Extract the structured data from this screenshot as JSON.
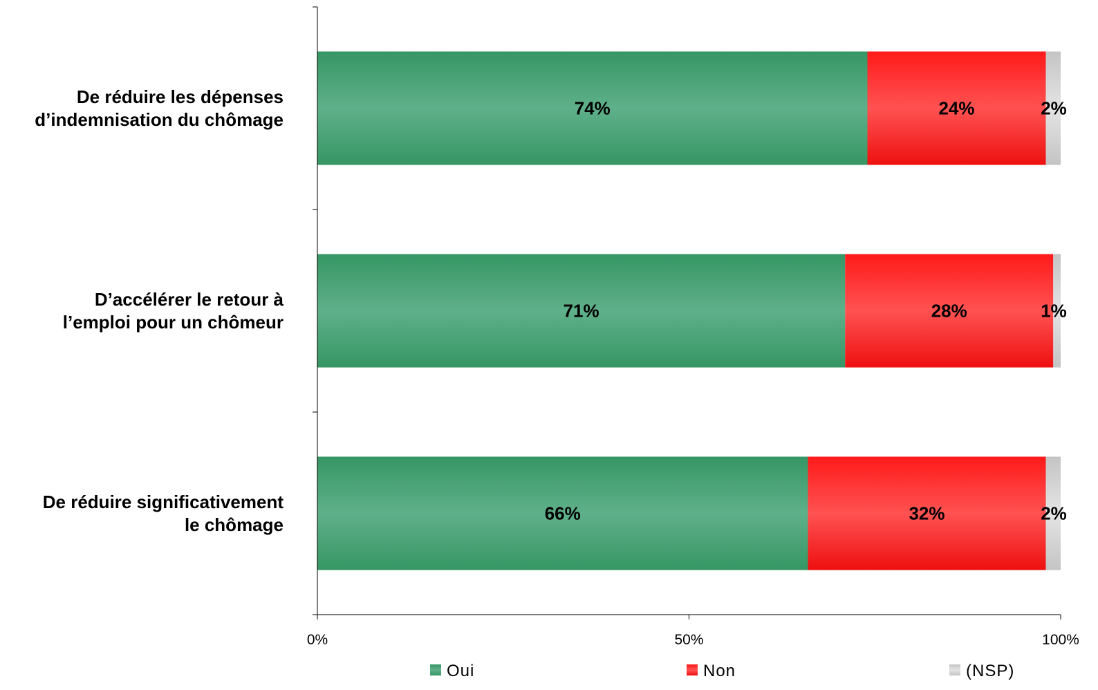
{
  "chart_data": {
    "type": "bar",
    "orientation": "horizontal",
    "stacked": true,
    "categories": [
      [
        "De réduire les dépenses",
        "d’indemnisation du chômage"
      ],
      [
        "D’accélérer le retour à",
        "l’emploi pour un chômeur"
      ],
      [
        "De réduire significativement",
        "le chômage"
      ]
    ],
    "series": [
      {
        "name": "Oui",
        "values": [
          74,
          71,
          66
        ],
        "labels": [
          "74%",
          "71%",
          "66%"
        ],
        "color": "#3a9a68"
      },
      {
        "name": "Non",
        "values": [
          24,
          28,
          32
        ],
        "labels": [
          "24%",
          "28%",
          "32%"
        ],
        "color": "#ff2222"
      },
      {
        "name": "(NSP)",
        "values": [
          2,
          1,
          2
        ],
        "labels": [
          "2%",
          "1%",
          "2%"
        ],
        "color": "#cfcfcf"
      }
    ],
    "xlim": [
      0,
      100
    ],
    "x_ticks": [
      0,
      50,
      100
    ],
    "x_tick_labels": [
      "0%",
      "50%",
      "100%"
    ],
    "grid": false,
    "legend_position": "bottom"
  }
}
